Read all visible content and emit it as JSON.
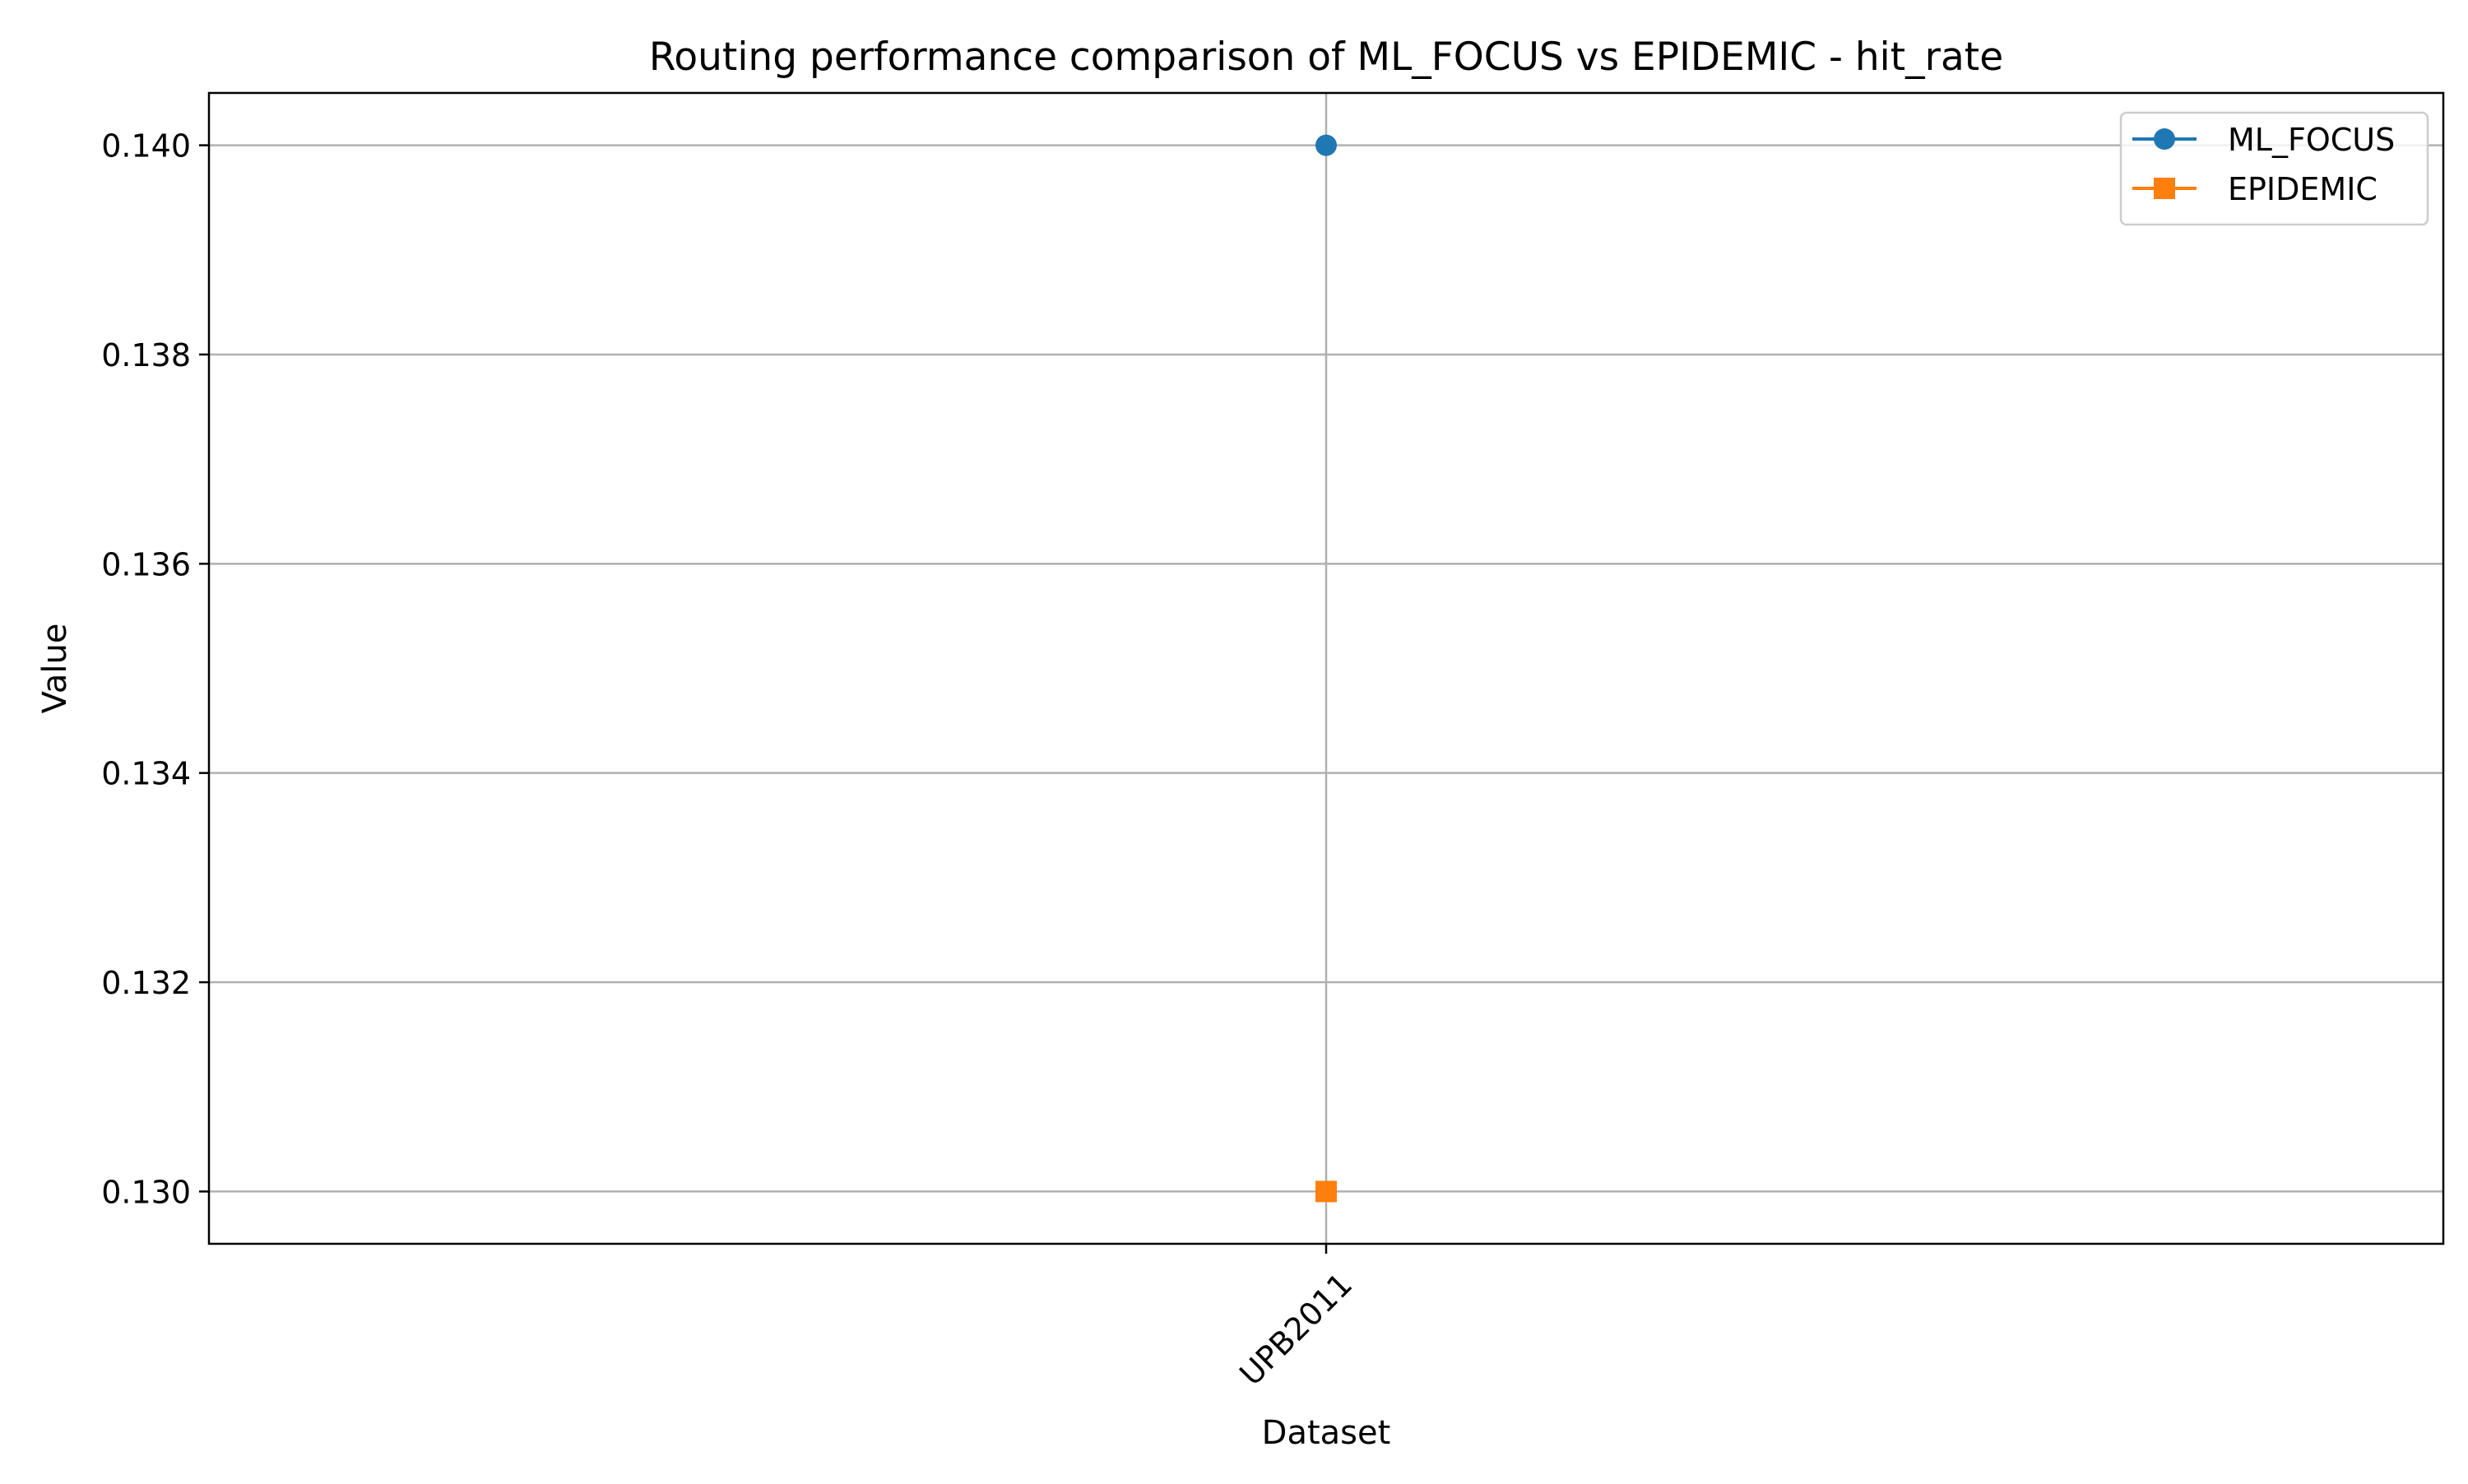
{
  "chart_data": {
    "type": "line",
    "title": "Routing performance comparison of ML_FOCUS vs EPIDEMIC - hit_rate",
    "xlabel": "Dataset",
    "ylabel": "Value",
    "categories": [
      "UPB2011"
    ],
    "ylim": [
      0.1295,
      0.1405
    ],
    "yticks": [
      0.13,
      0.132,
      0.134,
      0.136,
      0.138,
      0.14
    ],
    "ytick_labels": [
      "0.130",
      "0.132",
      "0.134",
      "0.136",
      "0.138",
      "0.140"
    ],
    "xtick_rotation_deg": 45,
    "grid": true,
    "legend_position": "top-right",
    "series": [
      {
        "name": "ML_FOCUS",
        "marker": "circle",
        "color": "#1f77b4",
        "values": [
          0.14
        ]
      },
      {
        "name": "EPIDEMIC",
        "marker": "square",
        "color": "#ff7f0e",
        "values": [
          0.13
        ]
      }
    ]
  }
}
